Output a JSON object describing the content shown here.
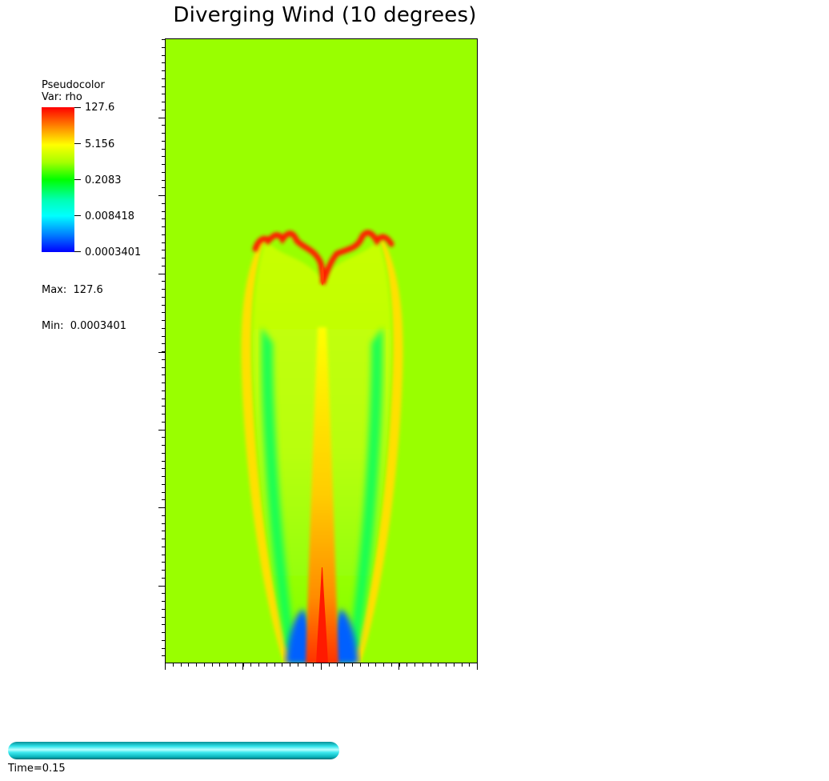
{
  "plot": {
    "title": "Diverging Wind (10 degrees)"
  },
  "legend": {
    "type_label": "Pseudocolor",
    "var_label": "Var: rho",
    "ticks": [
      "127.6",
      "5.156",
      "0.2083",
      "0.008418",
      "0.0003401"
    ],
    "max_label": "Max:  127.6",
    "min_label": "Min:  0.0003401"
  },
  "colors": {
    "background_field": "#99ff00",
    "high": "#ff0000",
    "low": "#0000ff"
  },
  "time": {
    "label": "Time=0.15"
  }
}
